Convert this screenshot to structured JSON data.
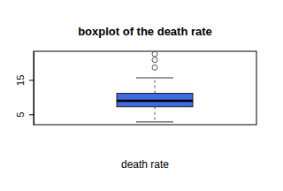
{
  "chart_data": {
    "type": "box",
    "title": "boxplot of the death rate",
    "x_label": "death rate",
    "whisker_low": 2.8,
    "q1": 7.2,
    "median": 8.9,
    "q3": 11.1,
    "whisker_high": 15.6,
    "outliers": [
      18.6,
      20.8,
      22.5
    ],
    "color": "#4169e1",
    "ylim": [
      2.0,
      23.3
    ],
    "yticks": [
      5,
      15
    ],
    "tick_labels": "y"
  }
}
